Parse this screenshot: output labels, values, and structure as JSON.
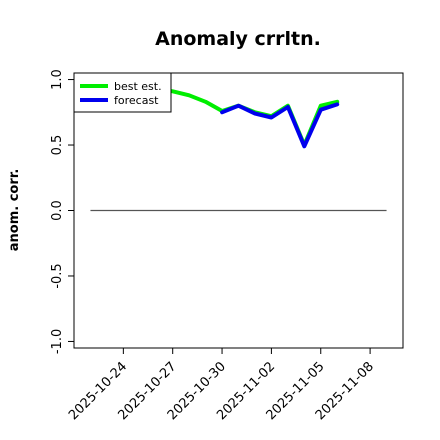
{
  "chart_data": {
    "type": "line",
    "title": "Anomaly crrltn.",
    "ylabel": "anom. corr.",
    "xlabel": "",
    "ylim": [
      -1.05,
      1.05
    ],
    "yticks": [
      -1.0,
      -0.5,
      0.0,
      0.5,
      1.0
    ],
    "ytick_labels": [
      "-1.0",
      "-0.5",
      "0.0",
      "0.5",
      "1.0"
    ],
    "xlim": [
      "2025-10-21",
      "2025-11-10"
    ],
    "xticks": [
      "2025-10-24",
      "2025-10-27",
      "2025-10-30",
      "2025-11-02",
      "2025-11-05",
      "2025-11-08"
    ],
    "xtick_labels": [
      "2025-10-24",
      "2025-10-27",
      "2025-10-30",
      "2025-11-02",
      "2025-11-05",
      "2025-11-08"
    ],
    "highlight_tick": "2025-10-30",
    "highlight_color": "#228B22",
    "reference_line": {
      "y": 0.0,
      "from": "2025-10-22",
      "to": "2025-11-09",
      "color": "#555555"
    },
    "legend_location": "top-left",
    "grid": false,
    "series": [
      {
        "name": "best est.",
        "color": "#00ee00",
        "x": [
          "2025-10-22",
          "2025-10-23",
          "2025-10-24",
          "2025-10-25",
          "2025-10-26",
          "2025-10-27",
          "2025-10-28",
          "2025-10-29",
          "2025-10-30",
          "2025-10-31",
          "2025-11-01",
          "2025-11-02",
          "2025-11-03",
          "2025-11-04",
          "2025-11-05",
          "2025-11-06"
        ],
        "y": [
          1.0,
          0.98,
          0.97,
          0.95,
          0.93,
          0.91,
          0.88,
          0.83,
          0.76,
          0.8,
          0.75,
          0.72,
          0.8,
          0.5,
          0.8,
          0.83
        ]
      },
      {
        "name": "forecast",
        "color": "#0000ee",
        "x": [
          "2025-10-30",
          "2025-10-31",
          "2025-11-01",
          "2025-11-02",
          "2025-11-03",
          "2025-11-04",
          "2025-11-05",
          "2025-11-06"
        ],
        "y": [
          0.75,
          0.8,
          0.74,
          0.71,
          0.79,
          0.49,
          0.77,
          0.81
        ]
      }
    ]
  }
}
